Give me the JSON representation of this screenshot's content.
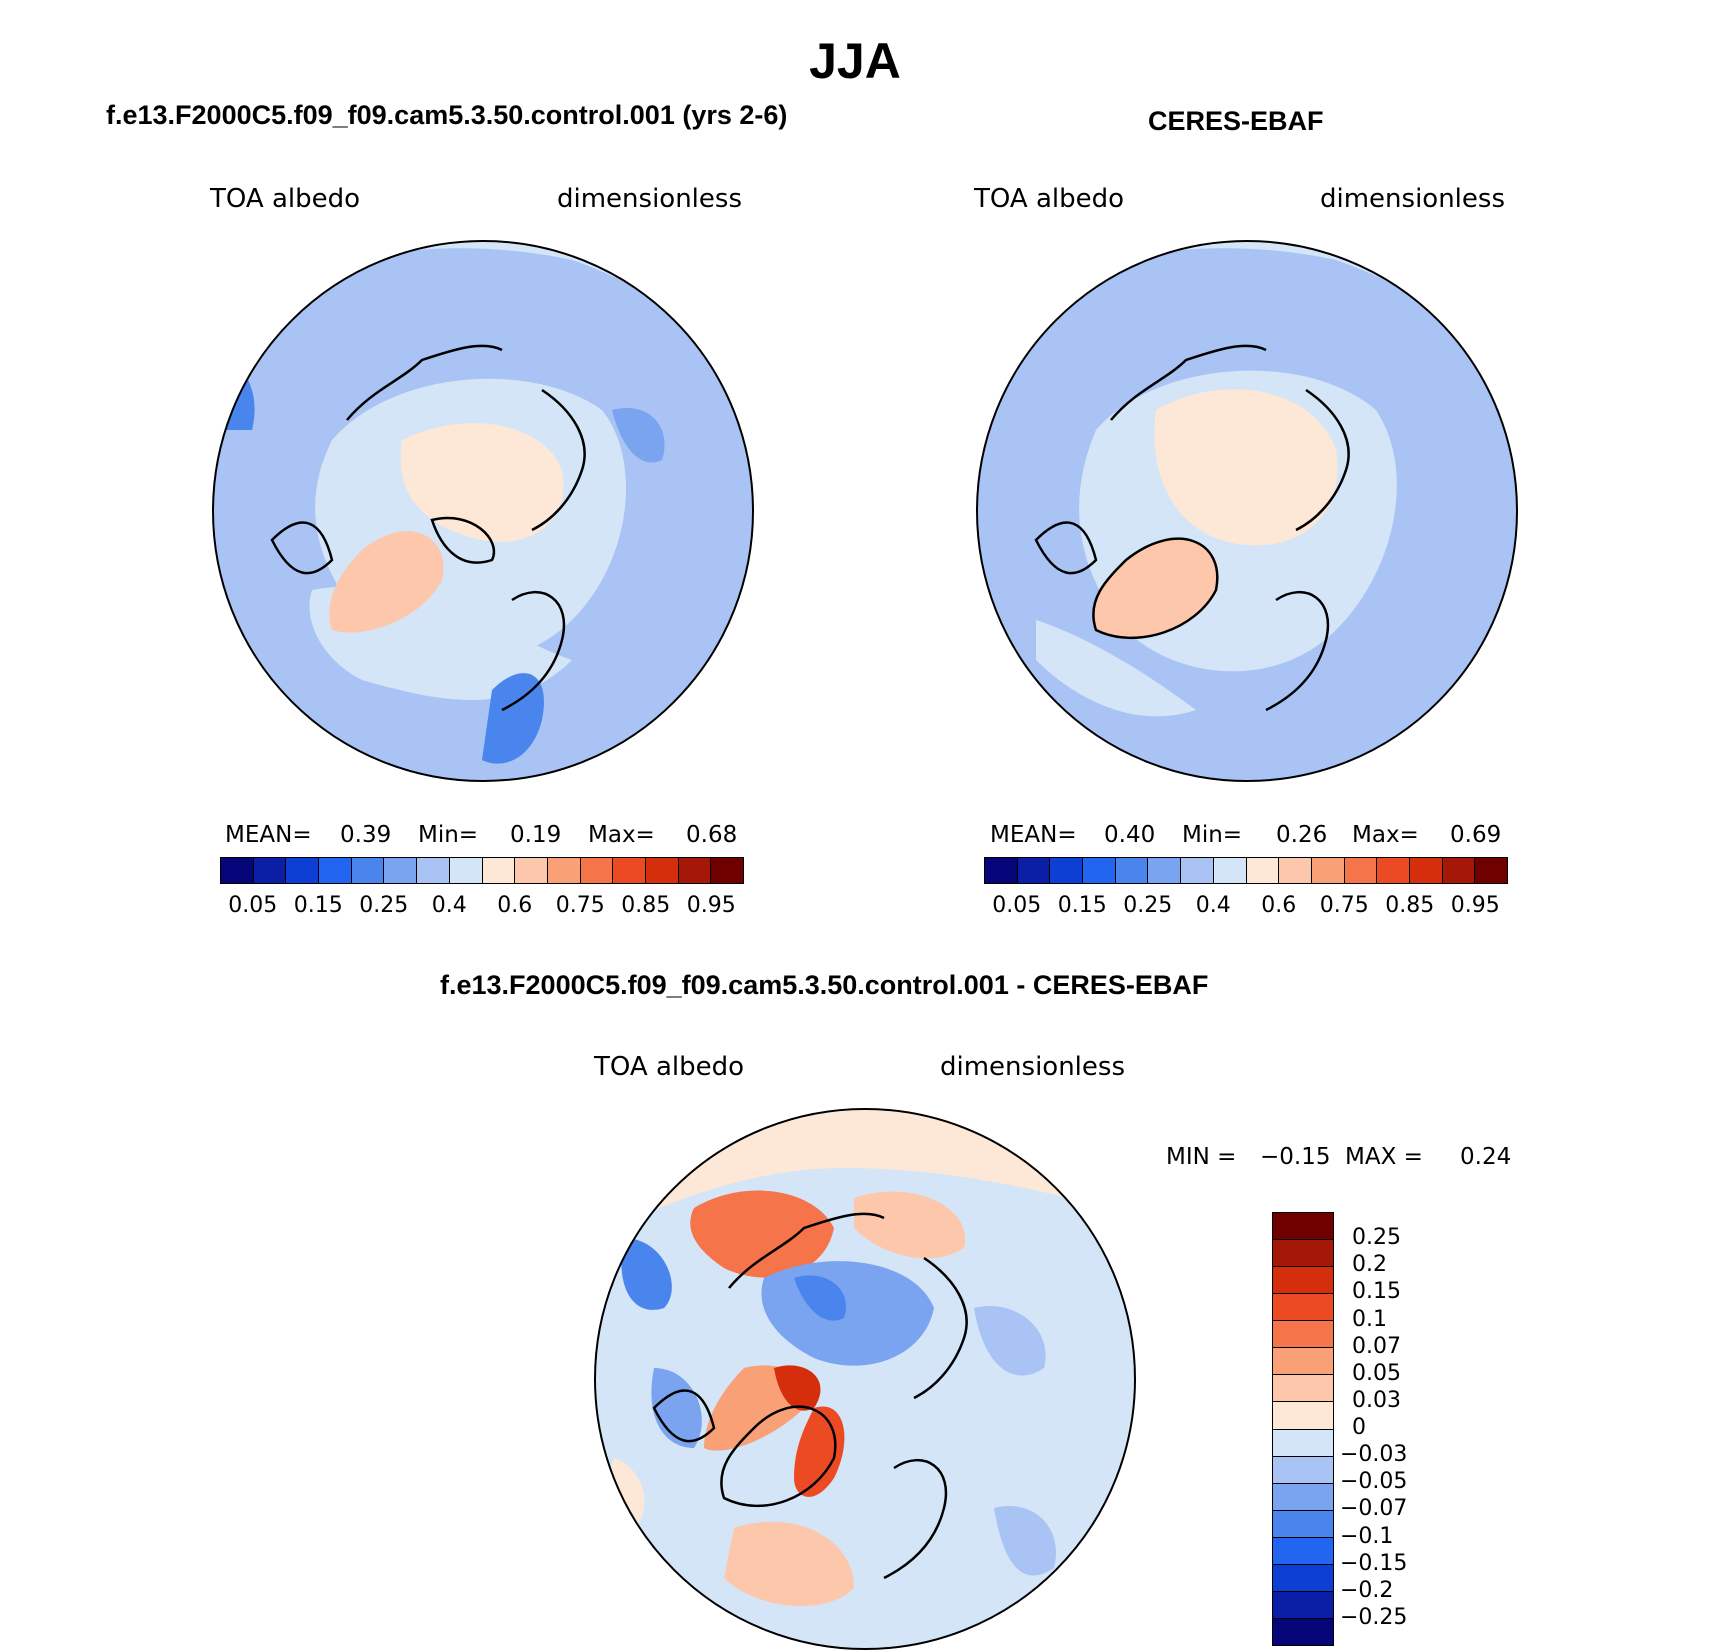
{
  "title": "JJA",
  "panels": [
    {
      "subtitle": "f.e13.F2000C5.f09_f09.cam5.3.50.control.001 (yrs 2-6)",
      "var_label": "TOA albedo",
      "units": "dimensionless",
      "stats": {
        "mean_label": "MEAN=",
        "mean": "0.39",
        "min_label": "Min=",
        "min": "0.19",
        "max_label": "Max=",
        "max": "0.68"
      }
    },
    {
      "subtitle": "CERES-EBAF",
      "var_label": "TOA albedo",
      "units": "dimensionless",
      "stats": {
        "mean_label": "MEAN=",
        "mean": "0.40",
        "min_label": "Min=",
        "min": "0.26",
        "max_label": "Max=",
        "max": "0.69"
      }
    },
    {
      "subtitle": "f.e13.F2000C5.f09_f09.cam5.3.50.control.001 - CERES-EBAF",
      "var_label": "TOA albedo",
      "units": "dimensionless",
      "stats": {
        "min_label": "MIN =",
        "min": "−0.15",
        "max_label": "MAX =",
        "max": "0.24"
      }
    }
  ],
  "colorbar_abs": {
    "colors": [
      "#06057a",
      "#0b1ea6",
      "#0d3fd4",
      "#2165f0",
      "#4a85ee",
      "#7aa4ef",
      "#a8c3f4",
      "#d4e5f8",
      "#fde7d6",
      "#fcc7aa",
      "#f9a077",
      "#f5744a",
      "#ec4a22",
      "#d42e0d",
      "#a51808",
      "#700000"
    ],
    "ticks": [
      "0.05",
      "0.15",
      "0.25",
      "0.4",
      "0.6",
      "0.75",
      "0.85",
      "0.95"
    ]
  },
  "colorbar_diff": {
    "colors": [
      "#700000",
      "#a51808",
      "#d42e0d",
      "#ec4a22",
      "#f5744a",
      "#f9a077",
      "#fcc7aa",
      "#fde7d6",
      "#d4e5f8",
      "#a8c3f4",
      "#7aa4ef",
      "#4a85ee",
      "#2165f0",
      "#0d3fd4",
      "#0b1ea6",
      "#06057a"
    ],
    "ticks": [
      "0.25",
      "0.2",
      "0.15",
      "0.1",
      "0.07",
      "0.05",
      "0.03",
      "0",
      "−0.03",
      "−0.05",
      "−0.07",
      "−0.1",
      "−0.15",
      "−0.2",
      "−0.25"
    ]
  }
}
